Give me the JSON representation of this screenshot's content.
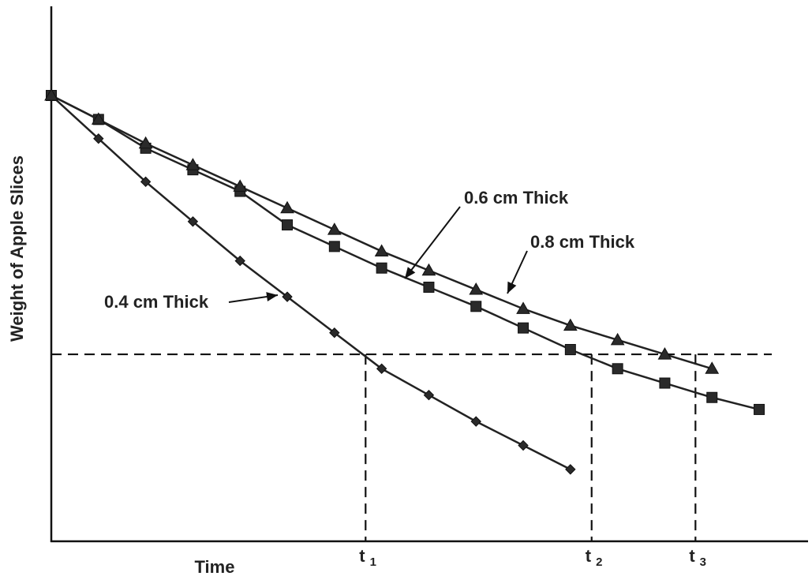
{
  "chart_data": {
    "type": "line",
    "title": "",
    "xlabel": "Time",
    "ylabel": "Weight of Apple Slices",
    "xlim": [
      0,
      15.3
    ],
    "ylim": [
      0,
      9.3
    ],
    "grid": false,
    "series": [
      {
        "name": "0.4 cm Thick",
        "marker": "diamond",
        "x": [
          0,
          1,
          2,
          3,
          4,
          5,
          6,
          7,
          8,
          9,
          10,
          11
        ],
        "y": [
          9.3,
          8.4,
          7.5,
          6.67,
          5.85,
          5.1,
          4.35,
          3.6,
          3.05,
          2.5,
          2.0,
          1.5
        ]
      },
      {
        "name": "0.6 cm Thick",
        "marker": "square",
        "x": [
          0,
          1,
          2,
          3,
          4,
          5,
          6,
          7,
          8,
          9,
          10,
          11,
          12,
          13,
          14,
          15
        ],
        "y": [
          9.3,
          8.8,
          8.2,
          7.75,
          7.3,
          6.6,
          6.15,
          5.7,
          5.3,
          4.9,
          4.45,
          4.0,
          3.6,
          3.3,
          3.0,
          2.75
        ]
      },
      {
        "name": "0.8 cm Thick",
        "marker": "triangle",
        "x": [
          0,
          1,
          2,
          3,
          4,
          5,
          6,
          7,
          8,
          9,
          10,
          11,
          12,
          13,
          14
        ],
        "y": [
          9.3,
          8.8,
          8.3,
          7.85,
          7.4,
          6.95,
          6.5,
          6.05,
          5.65,
          5.25,
          4.85,
          4.5,
          4.2,
          3.9,
          3.6
        ]
      }
    ],
    "threshold": {
      "y": 3.9
    },
    "markers": [
      {
        "label": "t",
        "sub": "1",
        "x": 6.66
      },
      {
        "label": "t",
        "sub": "2",
        "x": 11.45
      },
      {
        "label": "t",
        "sub": "3",
        "x": 13.65
      }
    ]
  }
}
